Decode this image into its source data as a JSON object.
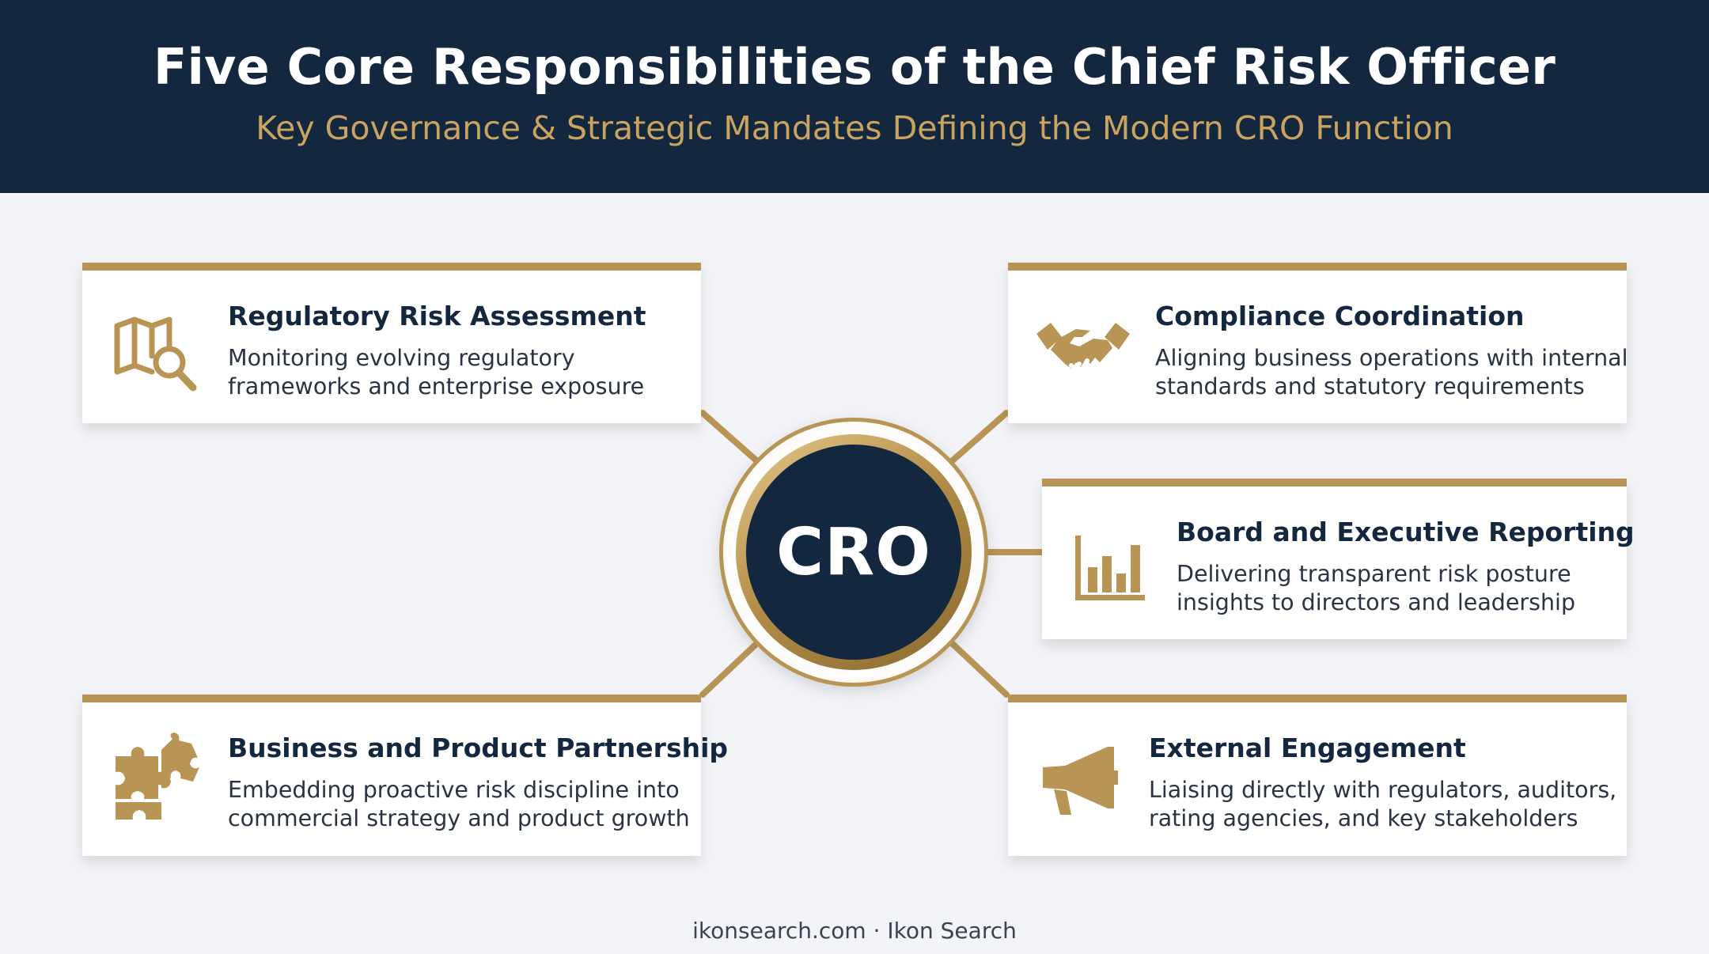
{
  "header": {
    "title": "Five Core Responsibilities of the Chief Risk Officer",
    "subtitle": "Key Governance & Strategic Mandates Defining the Modern CRO Function"
  },
  "hub": {
    "label": "CRO"
  },
  "cards": [
    {
      "title": "Regulatory Risk Assessment",
      "line1": "Monitoring evolving regulatory",
      "line2": "frameworks and enterprise exposure",
      "icon": "map-search-icon"
    },
    {
      "title": "Compliance Coordination",
      "line1": "Aligning business operations with internal",
      "line2": "standards and statutory requirements",
      "icon": "handshake-icon"
    },
    {
      "title": "Board and Executive Reporting",
      "line1": "Delivering transparent risk posture",
      "line2": "insights to directors and leadership",
      "icon": "bar-chart-icon"
    },
    {
      "title": "Business and Product Partnership",
      "line1": "Embedding proactive risk discipline into",
      "line2": "commercial strategy and product growth",
      "icon": "puzzle-icon"
    },
    {
      "title": "External Engagement",
      "line1": "Liaising directly with regulators, auditors,",
      "line2": "rating agencies, and key stakeholders",
      "icon": "megaphone-icon"
    }
  ],
  "footer": {
    "text": "ikonsearch.com · Ikon Search"
  },
  "colors": {
    "navy": "#13283f",
    "gold": "#b89555",
    "background": "#f3f4f7"
  }
}
